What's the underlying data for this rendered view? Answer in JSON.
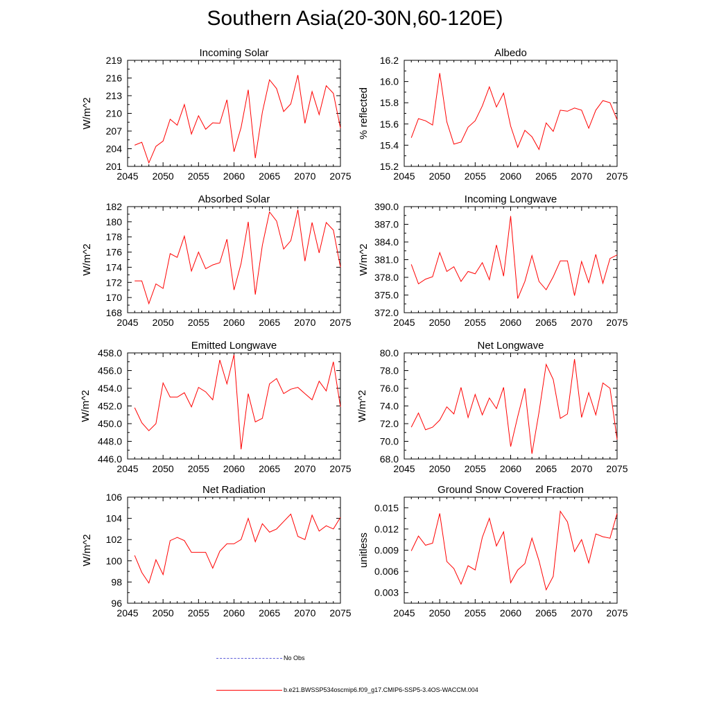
{
  "title": "Southern Asia(20-30N,60-120E)",
  "legend": {
    "obs_label": "No Obs",
    "model_label": "b.e21.BWSSP534oscmip6.f09_g17.CMIP6-SSP5-3.4OS-WACCM.004",
    "obs_color": "#5a5ad8",
    "model_color": "#ff0000"
  },
  "chart_data": [
    {
      "type": "line",
      "title": "Incoming Solar",
      "ylabel": "W/m^2",
      "xlim": [
        2045,
        2075
      ],
      "ylim": [
        201,
        219
      ],
      "xticks": [
        2045,
        2050,
        2055,
        2060,
        2065,
        2070,
        2075
      ],
      "xtick_labels": [
        "2045",
        "2050",
        "2055",
        "2060",
        "2065",
        "2070",
        "2075"
      ],
      "yticks": [
        201,
        204,
        207,
        210,
        213,
        216,
        219
      ],
      "ytick_labels": [
        "201",
        "204",
        "207",
        "210",
        "213",
        "216",
        "219"
      ],
      "x": [
        2046,
        2047,
        2048,
        2049,
        2050,
        2051,
        2052,
        2053,
        2054,
        2055,
        2056,
        2057,
        2058,
        2059,
        2060,
        2061,
        2062,
        2063,
        2064,
        2065,
        2066,
        2067,
        2068,
        2069,
        2070,
        2071,
        2072,
        2073,
        2074,
        2075
      ],
      "series": [
        {
          "name": "b.e21.BWSSP534oscmip6.f09_g17.CMIP6-SSP5-3.4OS-WACCM.004",
          "values": [
            204.6,
            205.1,
            201.6,
            204.4,
            205.3,
            209.0,
            208.0,
            211.5,
            206.5,
            209.6,
            207.3,
            208.4,
            208.3,
            212.3,
            203.5,
            207.6,
            214.0,
            202.4,
            210.2,
            215.7,
            214.2,
            210.3,
            211.6,
            216.5,
            208.3,
            213.7,
            209.8,
            214.7,
            213.4,
            207.5
          ]
        }
      ]
    },
    {
      "type": "line",
      "title": "Albedo",
      "ylabel": "% reflected",
      "xlim": [
        2045,
        2075
      ],
      "ylim": [
        15.2,
        16.2
      ],
      "xticks": [
        2045,
        2050,
        2055,
        2060,
        2065,
        2070,
        2075
      ],
      "xtick_labels": [
        "2045",
        "2050",
        "2055",
        "2060",
        "2065",
        "2070",
        "2075"
      ],
      "yticks": [
        15.2,
        15.4,
        15.6,
        15.8,
        16.0,
        16.2
      ],
      "ytick_labels": [
        "15.2",
        "15.4",
        "15.6",
        "15.8",
        "16.0",
        "16.2"
      ],
      "x": [
        2046,
        2047,
        2048,
        2049,
        2050,
        2051,
        2052,
        2053,
        2054,
        2055,
        2056,
        2057,
        2058,
        2059,
        2060,
        2061,
        2062,
        2063,
        2064,
        2065,
        2066,
        2067,
        2068,
        2069,
        2070,
        2071,
        2072,
        2073,
        2074,
        2075
      ],
      "series": [
        {
          "name": "b.e21.BWSSP534oscmip6.f09_g17.CMIP6-SSP5-3.4OS-WACCM.004",
          "values": [
            15.47,
            15.65,
            15.63,
            15.59,
            16.08,
            15.62,
            15.41,
            15.43,
            15.57,
            15.63,
            15.77,
            15.95,
            15.76,
            15.89,
            15.58,
            15.38,
            15.54,
            15.48,
            15.36,
            15.61,
            15.53,
            15.73,
            15.72,
            15.75,
            15.73,
            15.56,
            15.73,
            15.82,
            15.8,
            15.64
          ]
        }
      ]
    },
    {
      "type": "line",
      "title": "Absorbed Solar",
      "ylabel": "W/m^2",
      "xlim": [
        2045,
        2075
      ],
      "ylim": [
        168,
        182
      ],
      "xticks": [
        2045,
        2050,
        2055,
        2060,
        2065,
        2070,
        2075
      ],
      "xtick_labels": [
        "2045",
        "2050",
        "2055",
        "2060",
        "2065",
        "2070",
        "2075"
      ],
      "yticks": [
        168,
        170,
        172,
        174,
        176,
        178,
        180,
        182
      ],
      "ytick_labels": [
        "168",
        "170",
        "172",
        "174",
        "176",
        "178",
        "180",
        "182"
      ],
      "x": [
        2046,
        2047,
        2048,
        2049,
        2050,
        2051,
        2052,
        2053,
        2054,
        2055,
        2056,
        2057,
        2058,
        2059,
        2060,
        2061,
        2062,
        2063,
        2064,
        2065,
        2066,
        2067,
        2068,
        2069,
        2070,
        2071,
        2072,
        2073,
        2074,
        2075
      ],
      "series": [
        {
          "name": "b.e21.BWSSP534oscmip6.f09_g17.CMIP6-SSP5-3.4OS-WACCM.004",
          "values": [
            172.2,
            172.2,
            169.2,
            171.8,
            171.2,
            175.8,
            175.3,
            178.1,
            173.5,
            176.0,
            173.8,
            174.3,
            174.6,
            177.7,
            171.0,
            174.5,
            180.0,
            170.4,
            176.9,
            181.3,
            180.1,
            176.4,
            177.5,
            181.6,
            174.8,
            179.9,
            175.9,
            179.9,
            178.9,
            174.0
          ]
        }
      ]
    },
    {
      "type": "line",
      "title": "Incoming Longwave",
      "ylabel": "W/m^2",
      "xlim": [
        2045,
        2075
      ],
      "ylim": [
        372.0,
        390.0
      ],
      "xticks": [
        2045,
        2050,
        2055,
        2060,
        2065,
        2070,
        2075
      ],
      "xtick_labels": [
        "2045",
        "2050",
        "2055",
        "2060",
        "2065",
        "2070",
        "2075"
      ],
      "yticks": [
        372,
        375,
        378,
        381,
        384,
        387,
        390
      ],
      "ytick_labels": [
        "372.0",
        "375.0",
        "378.0",
        "381.0",
        "384.0",
        "387.0",
        "390.0"
      ],
      "x": [
        2046,
        2047,
        2048,
        2049,
        2050,
        2051,
        2052,
        2053,
        2054,
        2055,
        2056,
        2057,
        2058,
        2059,
        2060,
        2061,
        2062,
        2063,
        2064,
        2065,
        2066,
        2067,
        2068,
        2069,
        2070,
        2071,
        2072,
        2073,
        2074,
        2075
      ],
      "series": [
        {
          "name": "b.e21.BWSSP534oscmip6.f09_g17.CMIP6-SSP5-3.4OS-WACCM.004",
          "values": [
            380.2,
            376.9,
            377.7,
            378.1,
            382.2,
            379.0,
            379.8,
            377.3,
            379.0,
            378.6,
            380.5,
            377.6,
            383.5,
            378.2,
            388.4,
            374.4,
            377.3,
            381.7,
            377.3,
            375.9,
            378.1,
            380.8,
            380.8,
            374.9,
            380.7,
            377.1,
            381.9,
            377.0,
            381.2,
            381.8
          ]
        }
      ]
    },
    {
      "type": "line",
      "title": "Emitted Longwave",
      "ylabel": "W/m^2",
      "xlim": [
        2045,
        2075
      ],
      "ylim": [
        446.0,
        458.0
      ],
      "xticks": [
        2045,
        2050,
        2055,
        2060,
        2065,
        2070,
        2075
      ],
      "xtick_labels": [
        "2045",
        "2050",
        "2055",
        "2060",
        "2065",
        "2070",
        "2075"
      ],
      "yticks": [
        446,
        448,
        450,
        452,
        454,
        456,
        458
      ],
      "ytick_labels": [
        "446.0",
        "448.0",
        "450.0",
        "452.0",
        "454.0",
        "456.0",
        "458.0"
      ],
      "x": [
        2046,
        2047,
        2048,
        2049,
        2050,
        2051,
        2052,
        2053,
        2054,
        2055,
        2056,
        2057,
        2058,
        2059,
        2060,
        2061,
        2062,
        2063,
        2064,
        2065,
        2066,
        2067,
        2068,
        2069,
        2070,
        2071,
        2072,
        2073,
        2074,
        2075
      ],
      "series": [
        {
          "name": "b.e21.BWSSP534oscmip6.f09_g17.CMIP6-SSP5-3.4OS-WACCM.004",
          "values": [
            451.8,
            450.1,
            449.2,
            450.0,
            454.6,
            453.0,
            453.0,
            453.5,
            451.9,
            454.1,
            453.6,
            452.7,
            457.2,
            454.5,
            457.8,
            447.1,
            453.4,
            450.2,
            450.6,
            454.5,
            455.1,
            453.4,
            453.9,
            454.1,
            453.4,
            452.7,
            454.8,
            453.7,
            457.0,
            451.9
          ]
        }
      ]
    },
    {
      "type": "line",
      "title": "Net Longwave",
      "ylabel": "W/m^2",
      "xlim": [
        2045,
        2075
      ],
      "ylim": [
        68.0,
        80.0
      ],
      "xticks": [
        2045,
        2050,
        2055,
        2060,
        2065,
        2070,
        2075
      ],
      "xtick_labels": [
        "2045",
        "2050",
        "2055",
        "2060",
        "2065",
        "2070",
        "2075"
      ],
      "yticks": [
        68,
        70,
        72,
        74,
        76,
        78,
        80
      ],
      "ytick_labels": [
        "68.0",
        "70.0",
        "72.0",
        "74.0",
        "76.0",
        "78.0",
        "80.0"
      ],
      "x": [
        2046,
        2047,
        2048,
        2049,
        2050,
        2051,
        2052,
        2053,
        2054,
        2055,
        2056,
        2057,
        2058,
        2059,
        2060,
        2061,
        2062,
        2063,
        2064,
        2065,
        2066,
        2067,
        2068,
        2069,
        2070,
        2071,
        2072,
        2073,
        2074,
        2075
      ],
      "series": [
        {
          "name": "b.e21.BWSSP534oscmip6.f09_g17.CMIP6-SSP5-3.4OS-WACCM.004",
          "values": [
            71.6,
            73.2,
            71.3,
            71.6,
            72.4,
            73.9,
            73.1,
            76.1,
            72.7,
            75.3,
            73.0,
            74.9,
            73.7,
            76.1,
            69.4,
            72.8,
            76.0,
            68.6,
            73.3,
            78.7,
            77.0,
            72.6,
            73.1,
            79.3,
            72.7,
            75.5,
            73.0,
            76.6,
            76.0,
            70.2
          ]
        }
      ]
    },
    {
      "type": "line",
      "title": "Net Radiation",
      "ylabel": "W/m^2",
      "xlim": [
        2045,
        2075
      ],
      "ylim": [
        96,
        106
      ],
      "xticks": [
        2045,
        2050,
        2055,
        2060,
        2065,
        2070,
        2075
      ],
      "xtick_labels": [
        "2045",
        "2050",
        "2055",
        "2060",
        "2065",
        "2070",
        "2075"
      ],
      "yticks": [
        96,
        98,
        100,
        102,
        104,
        106
      ],
      "ytick_labels": [
        "96",
        "98",
        "100",
        "102",
        "104",
        "106"
      ],
      "x": [
        2046,
        2047,
        2048,
        2049,
        2050,
        2051,
        2052,
        2053,
        2054,
        2055,
        2056,
        2057,
        2058,
        2059,
        2060,
        2061,
        2062,
        2063,
        2064,
        2065,
        2066,
        2067,
        2068,
        2069,
        2070,
        2071,
        2072,
        2073,
        2074,
        2075
      ],
      "series": [
        {
          "name": "b.e21.BWSSP534oscmip6.f09_g17.CMIP6-SSP5-3.4OS-WACCM.004",
          "values": [
            100.5,
            98.9,
            97.9,
            100.1,
            98.7,
            101.9,
            102.2,
            101.9,
            100.8,
            100.8,
            100.8,
            99.3,
            100.9,
            101.6,
            101.6,
            102.0,
            104.0,
            101.8,
            103.5,
            102.7,
            103.0,
            103.7,
            104.4,
            102.3,
            102.0,
            104.3,
            102.8,
            103.3,
            103.0,
            104.1
          ]
        }
      ]
    },
    {
      "type": "line",
      "title": "Ground Snow Covered Fraction",
      "ylabel": "unitless",
      "xlim": [
        2045,
        2075
      ],
      "ylim": [
        0.0015,
        0.0165
      ],
      "xticks": [
        2045,
        2050,
        2055,
        2060,
        2065,
        2070,
        2075
      ],
      "xtick_labels": [
        "2045",
        "2050",
        "2055",
        "2060",
        "2065",
        "2070",
        "2075"
      ],
      "yticks": [
        0.003,
        0.006,
        0.009,
        0.012,
        0.015
      ],
      "ytick_labels": [
        "0.003",
        "0.006",
        "0.009",
        "0.012",
        "0.015"
      ],
      "x": [
        2046,
        2047,
        2048,
        2049,
        2050,
        2051,
        2052,
        2053,
        2054,
        2055,
        2056,
        2057,
        2058,
        2059,
        2060,
        2061,
        2062,
        2063,
        2064,
        2065,
        2066,
        2067,
        2068,
        2069,
        2070,
        2071,
        2072,
        2073,
        2074,
        2075
      ],
      "series": [
        {
          "name": "b.e21.BWSSP534oscmip6.f09_g17.CMIP6-SSP5-3.4OS-WACCM.004",
          "values": [
            0.0089,
            0.011,
            0.0097,
            0.01,
            0.0142,
            0.0074,
            0.0064,
            0.0042,
            0.0068,
            0.0062,
            0.0108,
            0.0135,
            0.0096,
            0.0116,
            0.0044,
            0.0062,
            0.0071,
            0.0107,
            0.0075,
            0.0034,
            0.0053,
            0.0145,
            0.013,
            0.0088,
            0.0105,
            0.0072,
            0.0113,
            0.0109,
            0.0107,
            0.0142
          ]
        }
      ]
    }
  ]
}
